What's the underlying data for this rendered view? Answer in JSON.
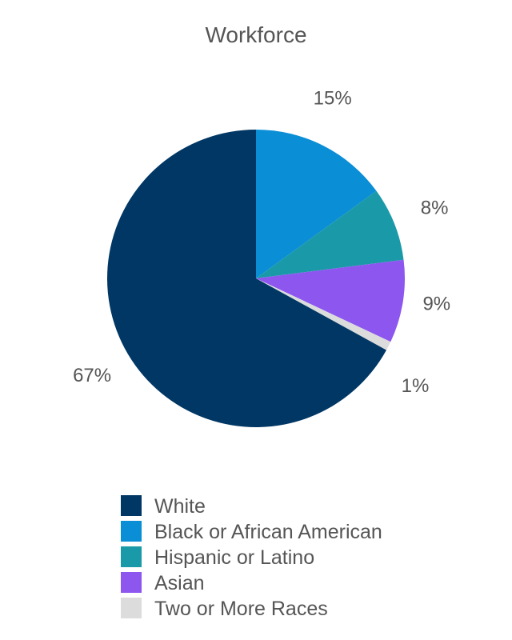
{
  "chart_data": {
    "type": "pie",
    "title": "Workforce",
    "categories": [
      "White",
      "Black or African American",
      "Hispanic or Latino",
      "Asian",
      "Two or More Races"
    ],
    "values": [
      67,
      15,
      8,
      9,
      1
    ],
    "labels": [
      "67%",
      "15%",
      "8%",
      "9%",
      "1%"
    ],
    "colors": [
      "#003764",
      "#0A8ED6",
      "#1A9AA8",
      "#8C56EF",
      "#DCDCDC"
    ],
    "legend_position": "bottom",
    "start_angle": "top",
    "direction": "clockwise"
  }
}
